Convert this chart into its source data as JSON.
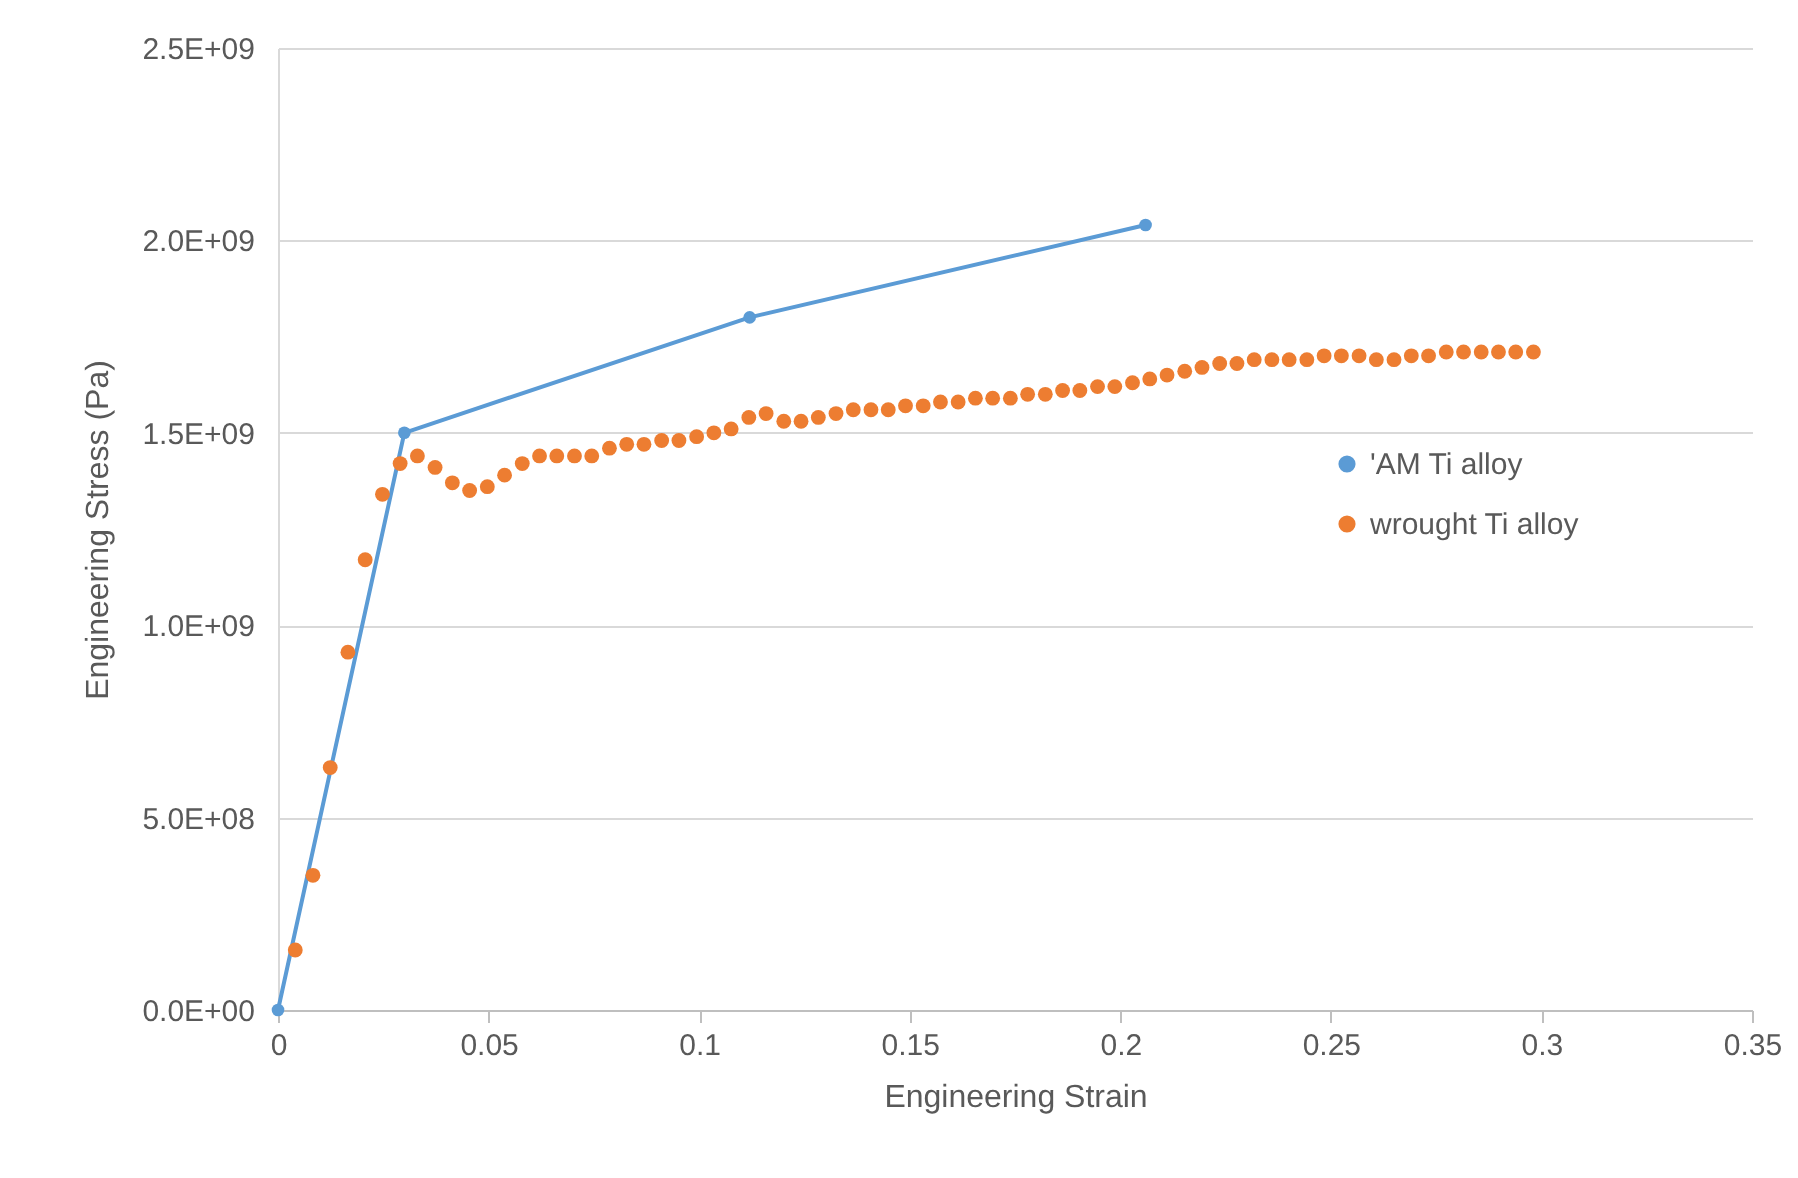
{
  "chart_data": {
    "type": "scatter",
    "xlabel": "Engineering Strain",
    "ylabel": "Engineering Stress (Pa)",
    "xlim": [
      0,
      0.35
    ],
    "xticks": [
      0,
      0.05,
      0.1,
      0.15,
      0.2,
      0.25,
      0.3,
      0.35
    ],
    "ylim": [
      0,
      2500000000
    ],
    "yticks": [
      {
        "value": 0,
        "label": "0.0E+00"
      },
      {
        "value": 500000000,
        "label": "5.0E+08"
      },
      {
        "value": 1000000000,
        "label": "1.0E+09"
      },
      {
        "value": 1500000000,
        "label": "1.5E+09"
      },
      {
        "value": 2000000000,
        "label": "2.0E+09"
      },
      {
        "value": 2500000000,
        "label": "2.5E+09"
      }
    ],
    "grid": "y",
    "legend": "right",
    "marker": "circle",
    "series": [
      {
        "name": "'AM Ti alloy",
        "type": "line",
        "color": "#5b9bd5",
        "x": [
          0,
          0.03,
          0.112,
          0.206
        ],
        "values": [
          0,
          1500000000,
          1800000000,
          2040000000
        ]
      },
      {
        "name": "wrought Ti alloy",
        "color": "#ed7d31",
        "x": [
          0.0041,
          0.0083,
          0.0124,
          0.0166,
          0.0207,
          0.0248,
          0.029,
          0.0331,
          0.0373,
          0.0414,
          0.0455,
          0.0497,
          0.0538,
          0.058,
          0.0621,
          0.0662,
          0.0704,
          0.0745,
          0.0787,
          0.0828,
          0.0869,
          0.0911,
          0.0952,
          0.0994,
          0.1035,
          0.1076,
          0.1118,
          0.1159,
          0.1201,
          0.1242,
          0.1283,
          0.1325,
          0.1366,
          0.1408,
          0.1449,
          0.149,
          0.1532,
          0.1573,
          0.1615,
          0.1656,
          0.1697,
          0.1739,
          0.178,
          0.1822,
          0.1863,
          0.1904,
          0.1946,
          0.1987,
          0.2029,
          0.207,
          0.2111,
          0.2153,
          0.2194,
          0.2236,
          0.2277,
          0.2318,
          0.236,
          0.2401,
          0.2443,
          0.2484,
          0.2525,
          0.2567,
          0.2608,
          0.265,
          0.2691,
          0.2732,
          0.2774,
          0.2815,
          0.2857,
          0.2898,
          0.2939,
          0.2981
        ],
        "values": [
          156000000,
          350000000,
          630000000,
          930000000,
          1170000000,
          1340000000,
          1420000000,
          1440000000,
          1410000000,
          1370000000,
          1350000000,
          1360000000,
          1390000000,
          1420000000,
          1440000000,
          1440000000,
          1440000000,
          1440000000,
          1460000000,
          1470000000,
          1470000000,
          1480000000,
          1480000000,
          1490000000,
          1500000000,
          1510000000,
          1540000000,
          1550000000,
          1530000000,
          1530000000,
          1540000000,
          1550000000,
          1560000000,
          1560000000,
          1560000000,
          1570000000,
          1570000000,
          1580000000,
          1580000000,
          1590000000,
          1590000000,
          1590000000,
          1600000000,
          1600000000,
          1610000000,
          1610000000,
          1620000000,
          1620000000,
          1630000000,
          1640000000,
          1650000000,
          1660000000,
          1670000000,
          1680000000,
          1680000000,
          1690000000,
          1690000000,
          1690000000,
          1690000000,
          1700000000,
          1700000000,
          1700000000,
          1690000000,
          1690000000,
          1700000000,
          1700000000,
          1710000000,
          1710000000,
          1710000000,
          1710000000,
          1710000000,
          1710000000
        ]
      }
    ]
  }
}
